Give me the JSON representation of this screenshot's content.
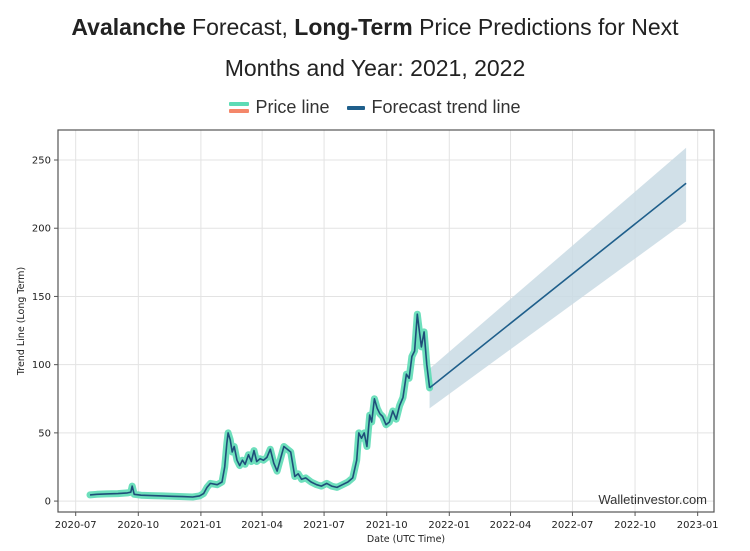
{
  "title": {
    "line1_bold1": "Avalanche",
    "line1_text1": " Forecast, ",
    "line1_bold2": "Long-Term",
    "line1_text2": " Price Predictions for Next",
    "line2": "Months and Year: 2021, 2022"
  },
  "legend": {
    "price_line": "Price line",
    "forecast_line": "Forecast trend line"
  },
  "colors": {
    "price_glow": "#5ddbb5",
    "price_line": "#1f4e79",
    "forecast_line": "#1f5f8b",
    "forecast_band": "#c9dae4",
    "grid": "#e3e3e3",
    "axis": "#555555"
  },
  "watermark": "Walletinvestor.com",
  "chart_data": {
    "type": "line",
    "title": "Avalanche Forecast, Long-Term Price Predictions for Next Months and Year: 2021, 2022",
    "xlabel": "Date (UTC Time)",
    "ylabel": "Trend Line (Long Term)",
    "ylim": [
      -8,
      272
    ],
    "xlim": [
      "2020-06-05",
      "2023-01-25"
    ],
    "grid": true,
    "legend_position": "top-center",
    "yticks": [
      0,
      50,
      100,
      150,
      200,
      250
    ],
    "xticks": [
      "2020-07",
      "2020-10",
      "2021-01",
      "2021-04",
      "2021-07",
      "2021-10",
      "2022-01",
      "2022-04",
      "2022-07",
      "2022-10",
      "2023-01"
    ],
    "xtick_dates": [
      "2020-07-01",
      "2020-10-01",
      "2021-01-01",
      "2021-04-01",
      "2021-07-01",
      "2021-10-01",
      "2022-01-01",
      "2022-04-01",
      "2022-07-01",
      "2022-10-01",
      "2023-01-01"
    ],
    "series": [
      {
        "name": "Price line",
        "points": [
          [
            "2020-07-22",
            4.5
          ],
          [
            "2020-08-01",
            5.0
          ],
          [
            "2020-08-15",
            5.3
          ],
          [
            "2020-09-01",
            5.5
          ],
          [
            "2020-09-15",
            6.0
          ],
          [
            "2020-09-20",
            6.5
          ],
          [
            "2020-09-22",
            11.0
          ],
          [
            "2020-09-25",
            5.0
          ],
          [
            "2020-10-05",
            4.3
          ],
          [
            "2020-10-20",
            4.0
          ],
          [
            "2020-11-05",
            3.8
          ],
          [
            "2020-11-20",
            3.5
          ],
          [
            "2020-12-05",
            3.3
          ],
          [
            "2020-12-20",
            3.0
          ],
          [
            "2020-12-30",
            3.8
          ],
          [
            "2021-01-05",
            5.5
          ],
          [
            "2021-01-10",
            10.0
          ],
          [
            "2021-01-15",
            13.0
          ],
          [
            "2021-01-25",
            12.0
          ],
          [
            "2021-02-01",
            14.0
          ],
          [
            "2021-02-05",
            25.0
          ],
          [
            "2021-02-08",
            42.0
          ],
          [
            "2021-02-10",
            50.0
          ],
          [
            "2021-02-13",
            45.0
          ],
          [
            "2021-02-16",
            36.0
          ],
          [
            "2021-02-19",
            40.0
          ],
          [
            "2021-02-23",
            30.0
          ],
          [
            "2021-02-27",
            26.0
          ],
          [
            "2021-03-03",
            30.0
          ],
          [
            "2021-03-07",
            27.0
          ],
          [
            "2021-03-12",
            34.0
          ],
          [
            "2021-03-16",
            29.0
          ],
          [
            "2021-03-20",
            37.0
          ],
          [
            "2021-03-24",
            29.0
          ],
          [
            "2021-03-29",
            31.0
          ],
          [
            "2021-04-03",
            30.0
          ],
          [
            "2021-04-08",
            32.0
          ],
          [
            "2021-04-13",
            38.0
          ],
          [
            "2021-04-18",
            28.0
          ],
          [
            "2021-04-23",
            22.0
          ],
          [
            "2021-04-28",
            31.0
          ],
          [
            "2021-05-03",
            40.0
          ],
          [
            "2021-05-08",
            38.0
          ],
          [
            "2021-05-13",
            36.0
          ],
          [
            "2021-05-19",
            18.0
          ],
          [
            "2021-05-24",
            20.0
          ],
          [
            "2021-05-29",
            16.0
          ],
          [
            "2021-06-04",
            17.0
          ],
          [
            "2021-06-12",
            14.0
          ],
          [
            "2021-06-20",
            12.0
          ],
          [
            "2021-06-27",
            11.0
          ],
          [
            "2021-07-05",
            13.0
          ],
          [
            "2021-07-12",
            11.0
          ],
          [
            "2021-07-20",
            10.0
          ],
          [
            "2021-07-28",
            12.0
          ],
          [
            "2021-08-05",
            14.0
          ],
          [
            "2021-08-12",
            17.0
          ],
          [
            "2021-08-18",
            30.0
          ],
          [
            "2021-08-21",
            50.0
          ],
          [
            "2021-08-25",
            46.0
          ],
          [
            "2021-08-29",
            50.0
          ],
          [
            "2021-09-02",
            40.0
          ],
          [
            "2021-09-06",
            63.0
          ],
          [
            "2021-09-09",
            58.0
          ],
          [
            "2021-09-13",
            75.0
          ],
          [
            "2021-09-17",
            68.0
          ],
          [
            "2021-09-21",
            64.0
          ],
          [
            "2021-09-25",
            62.0
          ],
          [
            "2021-09-30",
            56.0
          ],
          [
            "2021-10-05",
            58.0
          ],
          [
            "2021-10-10",
            66.0
          ],
          [
            "2021-10-15",
            60.0
          ],
          [
            "2021-10-20",
            70.0
          ],
          [
            "2021-10-25",
            76.0
          ],
          [
            "2021-10-30",
            93.0
          ],
          [
            "2021-11-03",
            90.0
          ],
          [
            "2021-11-07",
            106.0
          ],
          [
            "2021-11-11",
            110.0
          ],
          [
            "2021-11-15",
            137.0
          ],
          [
            "2021-11-18",
            125.0
          ],
          [
            "2021-11-21",
            113.0
          ],
          [
            "2021-11-25",
            124.0
          ],
          [
            "2021-11-29",
            100.0
          ],
          [
            "2021-12-03",
            83.0
          ]
        ]
      },
      {
        "name": "Forecast trend line",
        "points": [
          [
            "2021-12-03",
            83.0
          ],
          [
            "2022-12-15",
            233.0
          ]
        ],
        "band_upper": [
          [
            "2021-12-03",
            97.0
          ],
          [
            "2022-12-15",
            259.0
          ]
        ],
        "band_lower": [
          [
            "2021-12-03",
            68.0
          ],
          [
            "2022-12-15",
            205.0
          ]
        ]
      }
    ]
  }
}
